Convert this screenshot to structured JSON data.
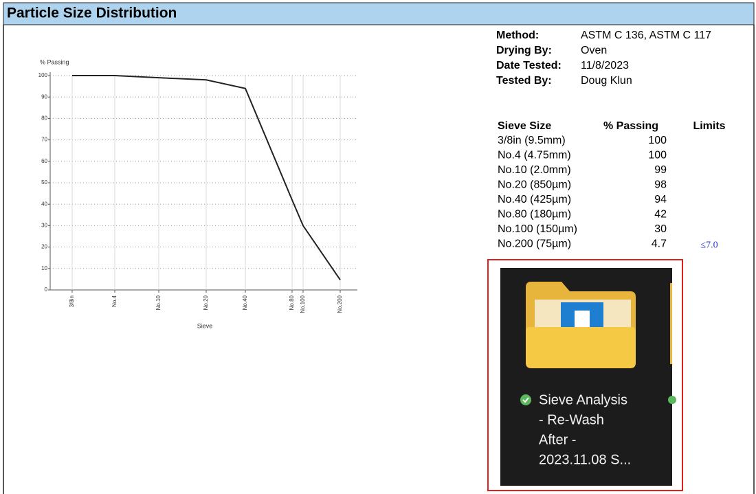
{
  "header": {
    "title": "Particle Size Distribution"
  },
  "chart_data": {
    "type": "line",
    "ylabel": "% Passing",
    "xlabel": "Sieve",
    "categories": [
      "3/8in",
      "No.4",
      "No.10",
      "No.20",
      "No.40",
      "No.80",
      "No.100",
      "No.200"
    ],
    "values": [
      100,
      100,
      99,
      98,
      94,
      42,
      30,
      4.7
    ],
    "color": "#222222",
    "ylim": [
      0,
      100
    ],
    "yticks": [
      0,
      10,
      20,
      30,
      40,
      50,
      60,
      70,
      80,
      90,
      100
    ],
    "grid": true
  },
  "info": [
    {
      "key": "Method:",
      "value": "ASTM C 136, ASTM C 117"
    },
    {
      "key": "Drying By:",
      "value": "Oven"
    },
    {
      "key": "Date Tested:",
      "value": "11/8/2023"
    },
    {
      "key": "Tested By:",
      "value": "Doug Klun"
    }
  ],
  "table": {
    "headers": [
      "Sieve Size",
      "% Passing",
      "Limits"
    ],
    "sieves": [
      "3/8in (9.5mm)",
      "No.4 (4.75mm)",
      "No.10 (2.0mm)",
      "No.20 (850µm)",
      "No.40 (425µm)",
      "No.80 (180µm)",
      "No.100 (150µm)",
      "No.200 (75µm)"
    ],
    "limits": [
      null,
      null,
      null,
      null,
      null,
      null,
      null,
      "≤7.0"
    ]
  },
  "inset": {
    "file_name_lines": [
      "Sieve Analysis",
      "- Re-Wash",
      "After -",
      "2023.11.08 S..."
    ]
  }
}
